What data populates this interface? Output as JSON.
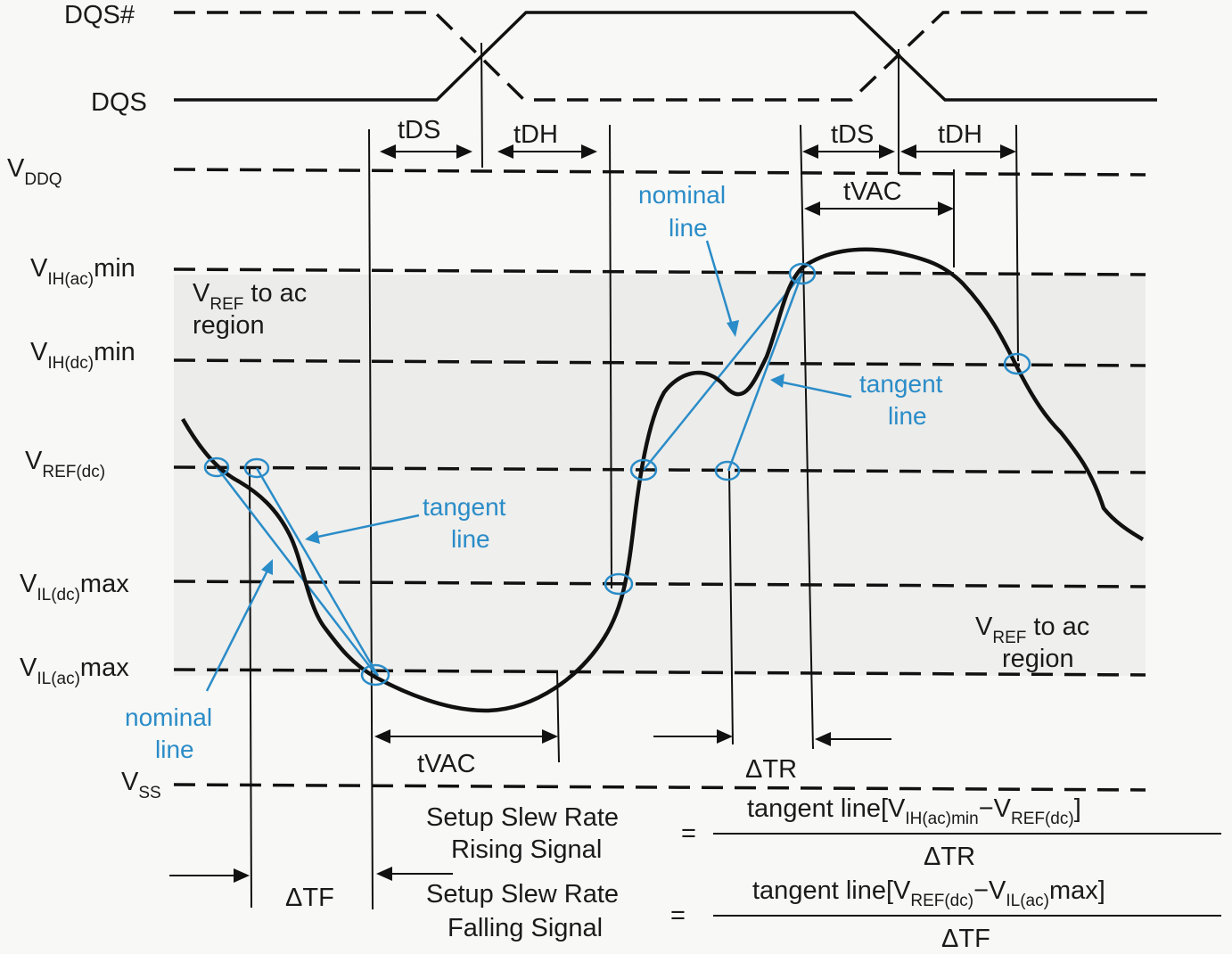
{
  "signals": {
    "dqs_bar": "DQS#",
    "dqs": "DQS"
  },
  "levels": {
    "vddq": {
      "main": "V",
      "sub": "DDQ",
      "tail": ""
    },
    "vih_ac": {
      "main": "V",
      "sub": "IH(ac)",
      "tail": "min"
    },
    "vih_dc": {
      "main": "V",
      "sub": "IH(dc)",
      "tail": "min"
    },
    "vref_dc": {
      "main": "V",
      "sub": "REF(dc)",
      "tail": ""
    },
    "vil_dc": {
      "main": "V",
      "sub": "IL(dc)",
      "tail": "max"
    },
    "vil_ac": {
      "main": "V",
      "sub": "IL(ac)",
      "tail": "max"
    },
    "vss": {
      "main": "V",
      "sub": "SS",
      "tail": ""
    }
  },
  "timing": {
    "tds_left": "tDS",
    "tdh_left": "tDH",
    "tds_right": "tDS",
    "tdh_right": "tDH",
    "tvac_top": "tVAC",
    "tvac_bottom": "tVAC",
    "delta_tr": "ΔTR",
    "delta_tf": "ΔTF"
  },
  "regions": {
    "top": {
      "l1_main": "V",
      "l1_sub": "REF",
      "l1_tail": " to ac",
      "l2": "region"
    },
    "bottom": {
      "l1_main": "V",
      "l1_sub": "REF",
      "l1_tail": " to ac",
      "l2": "region"
    }
  },
  "annotations": {
    "nominal_top": [
      "nominal",
      "line"
    ],
    "tangent_right": [
      "tangent",
      "line"
    ],
    "tangent_left": [
      "tangent",
      "line"
    ],
    "nominal_bottom": [
      "nominal",
      "line"
    ]
  },
  "formulas": {
    "rising": {
      "name_l1": "Setup Slew Rate",
      "name_l2": "Rising Signal",
      "eq": "=",
      "num_pre": "tangent line[V",
      "num_sub1": "IH(ac)min",
      "num_mid": "−V",
      "num_sub2": "REF(dc)",
      "num_post": "]",
      "den": "ΔTR"
    },
    "falling": {
      "name_l1": "Setup Slew Rate",
      "name_l2": "Falling Signal",
      "eq": "=",
      "num_pre": "tangent line[V",
      "num_sub1": "REF(dc)",
      "num_mid": "−V",
      "num_sub2": "IL(ac)",
      "num_post": "max]",
      "den": "ΔTF"
    }
  },
  "colors": {
    "ink": "#111111",
    "accent_blue": "#2a8cc8",
    "region_fill": "#ececea"
  }
}
